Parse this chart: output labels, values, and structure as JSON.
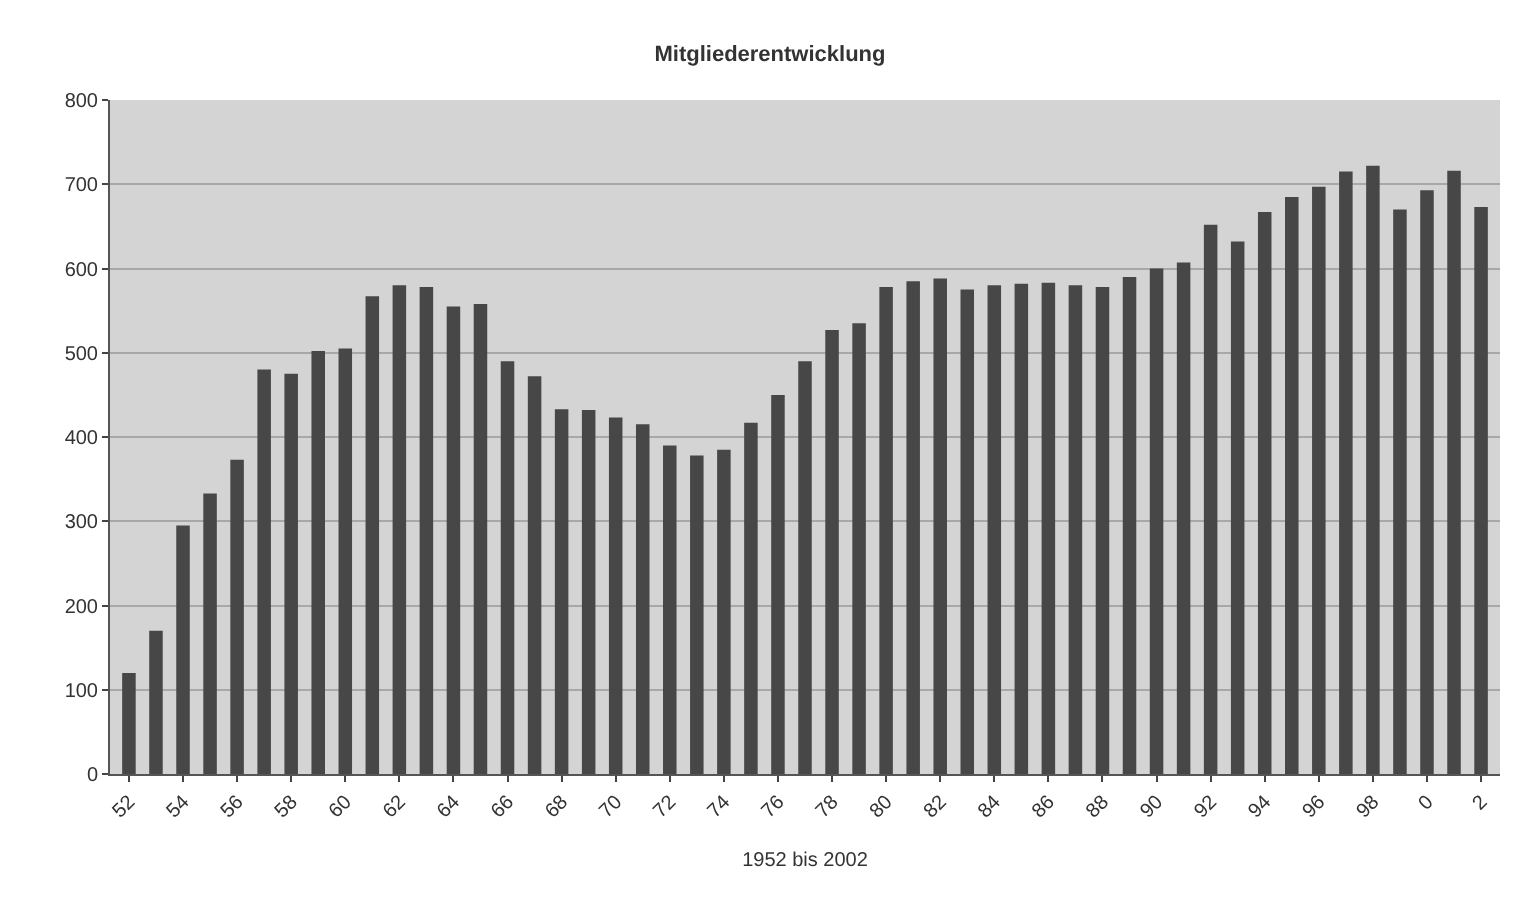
{
  "chart_data": {
    "type": "bar",
    "title": "Mitgliederentwicklung",
    "xlabel": "1952 bis 2002",
    "categories": [
      "52",
      null,
      "54",
      null,
      "56",
      null,
      "58",
      null,
      "60",
      null,
      "62",
      null,
      "64",
      null,
      "66",
      null,
      "68",
      null,
      "70",
      null,
      "72",
      null,
      "74",
      null,
      "76",
      null,
      "78",
      null,
      "80",
      null,
      "82",
      null,
      "84",
      null,
      "86",
      null,
      "88",
      null,
      "90",
      null,
      "92",
      null,
      "94",
      null,
      "96",
      null,
      "98",
      null,
      "0",
      null,
      "2"
    ],
    "values": [
      120,
      170,
      295,
      333,
      373,
      480,
      475,
      502,
      505,
      567,
      580,
      578,
      555,
      558,
      490,
      472,
      433,
      432,
      423,
      415,
      390,
      378,
      385,
      417,
      450,
      490,
      527,
      535,
      578,
      585,
      588,
      575,
      580,
      582,
      583,
      580,
      578,
      590,
      600,
      607,
      652,
      632,
      667,
      685,
      697,
      715,
      722,
      670,
      693,
      716,
      673
    ],
    "color": "#474747",
    "ylim": [
      0,
      800
    ],
    "yticks": [
      0,
      100,
      200,
      300,
      400,
      500,
      600,
      700,
      800
    ],
    "grid": "y"
  }
}
